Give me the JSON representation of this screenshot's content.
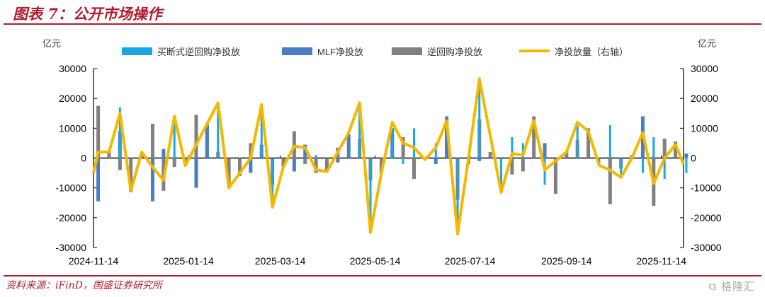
{
  "title": "图表 7：公开市场操作",
  "source": "资料来源：iFinD，国盛证券研究所",
  "watermark": "格隆汇",
  "chart_data": {
    "type": "bar",
    "left_unit": "亿元",
    "right_unit": "亿元",
    "ylim": [
      -30000,
      30000
    ],
    "yticks": [
      30000,
      20000,
      10000,
      0,
      -10000,
      -20000,
      -30000
    ],
    "xtick_labels": [
      "2024-11-14",
      "2025-01-14",
      "2025-03-14",
      "2025-05-14",
      "2025-07-14",
      "2025-09-14",
      "2025-11-14"
    ],
    "legend_position": "top",
    "start_date": "2024-11-17",
    "step_days": 7,
    "series": [
      {
        "name": "买断式逆回购净投放",
        "kind": "bar",
        "axis": "left",
        "color": "#1aa7e6",
        "values": [
          0,
          0,
          17000,
          0,
          0,
          0,
          0,
          12000,
          0,
          0,
          0,
          18000,
          0,
          0,
          0,
          18000,
          -16500,
          0,
          0,
          0,
          1000,
          0,
          0,
          0,
          18000,
          -25000,
          0,
          10000,
          -2000,
          10000,
          0,
          5000,
          0,
          -25500,
          0,
          27000,
          0,
          -11500,
          7000,
          5000,
          0,
          -9000,
          0,
          0,
          11000,
          0,
          -2000,
          11000,
          -5500,
          0,
          -5000,
          7000,
          -7000,
          0,
          -5000
        ]
      },
      {
        "name": "MLF净投放",
        "kind": "bar",
        "axis": "left",
        "color": "#4a7ec4",
        "values": [
          -14500,
          0,
          9000,
          0,
          0,
          -14500,
          3000,
          0,
          0,
          -10000,
          11000,
          0,
          0,
          0,
          -5000,
          4500,
          0,
          0,
          -4500,
          4500,
          0,
          0,
          -1500,
          8000,
          0,
          0,
          0,
          10000,
          0,
          0,
          0,
          -2000,
          14000,
          0,
          0,
          -1000,
          0,
          0,
          0,
          0,
          0,
          5000,
          0,
          0,
          0,
          0,
          0,
          0,
          0,
          0,
          14000,
          0,
          0,
          0,
          1500
        ]
      },
      {
        "name": "逆回购净投放",
        "kind": "bar",
        "axis": "left",
        "color": "#808080",
        "values": [
          17500,
          2000,
          -4000,
          -11500,
          2000,
          11500,
          -11000,
          -3000,
          -2500,
          14500,
          11500,
          2000,
          -10000,
          -6000,
          5000,
          0,
          -9000,
          -3000,
          9000,
          -2000,
          -5000,
          -4000,
          3500,
          0,
          6500,
          -7500,
          -5000,
          0,
          7000,
          -7000,
          -500,
          0,
          12000,
          -14000,
          -2000,
          13000,
          2000,
          0,
          -5500,
          -4500,
          14000,
          0,
          -12000,
          2000,
          6000,
          10000,
          0,
          -15500,
          -3500,
          1000,
          10000,
          -16000,
          6500,
          5500,
          0
        ]
      },
      {
        "name": "净投放量（右轴）",
        "kind": "line",
        "axis": "right",
        "color": "#f5b800",
        "values": [
          2000,
          2000,
          15000,
          -11000,
          2000,
          -3000,
          -7500,
          14000,
          -2500,
          4500,
          11500,
          18500,
          -10000,
          -5000,
          0,
          18000,
          -16500,
          -3000,
          4000,
          3500,
          -4000,
          -4500,
          2000,
          8500,
          18500,
          -25000,
          -5000,
          12000,
          5000,
          3500,
          -500,
          3500,
          12500,
          -25500,
          0,
          26500,
          7500,
          -11500,
          1500,
          1000,
          12500,
          -4000,
          -1000,
          2000,
          12000,
          9000,
          -2500,
          -4000,
          -6500,
          0,
          8500,
          -8500,
          0,
          4500,
          -2000
        ]
      }
    ]
  }
}
